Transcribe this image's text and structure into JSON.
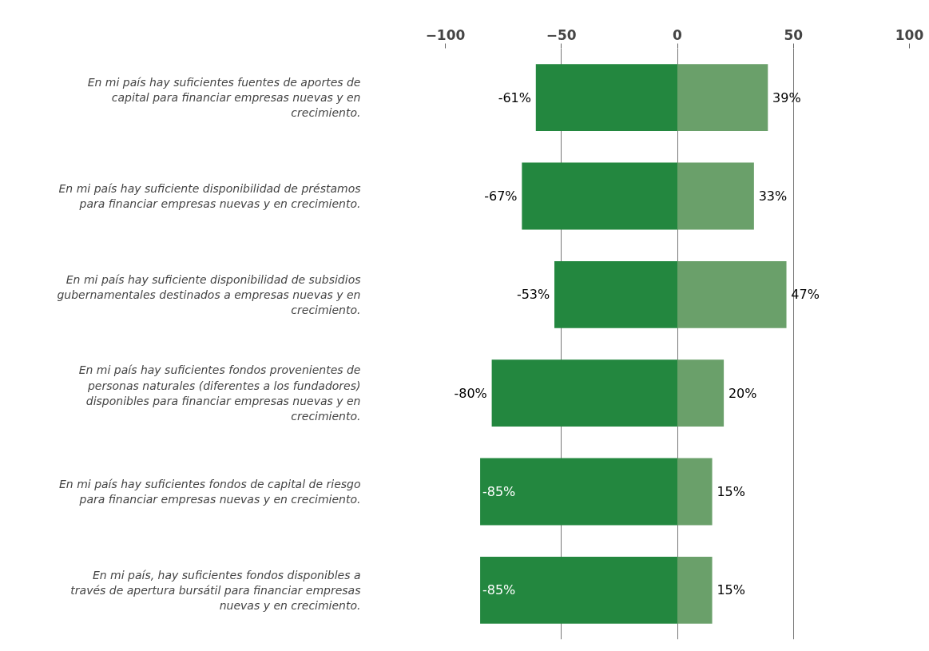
{
  "chart_data": {
    "type": "bar",
    "orientation": "horizontal",
    "stacked": true,
    "categories": [
      "En mi país hay suficientes fuentes de aportes de capital para financiar empresas nuevas y en crecimiento.",
      "En mi país hay suficiente disponibilidad de préstamos para financiar empresas nuevas y en crecimiento.",
      "En mi país hay suficiente disponibilidad de subsidios gubernamentales destinados a empresas nuevas y en crecimiento.",
      "En mi país hay suficientes fondos provenientes de personas naturales (diferentes a los fundadores) disponibles para financiar empresas nuevas y en crecimiento.",
      "En mi país hay suficientes fondos de capital de riesgo para financiar empresas nuevas y en crecimiento.",
      "En mi país, hay suficientes fondos disponibles a través de apertura bursátil para financiar empresas nuevas y en crecimiento."
    ],
    "series": [
      {
        "color": "#23873f",
        "values": [
          -61,
          -67,
          -53,
          -80,
          -85,
          -85
        ],
        "value_labels": [
          "-61%",
          "-67%",
          "-53%",
          "-80%",
          "-85%",
          "-85%"
        ]
      },
      {
        "color": "#6aa06a",
        "values": [
          39,
          33,
          47,
          20,
          15,
          15
        ],
        "value_labels": [
          "39%",
          "33%",
          "47%",
          "20%",
          "15%",
          "15%"
        ]
      }
    ],
    "xlim": [
      -100,
      100
    ],
    "xticks": [
      -100,
      -50,
      0,
      50,
      100
    ],
    "grid": "x"
  }
}
